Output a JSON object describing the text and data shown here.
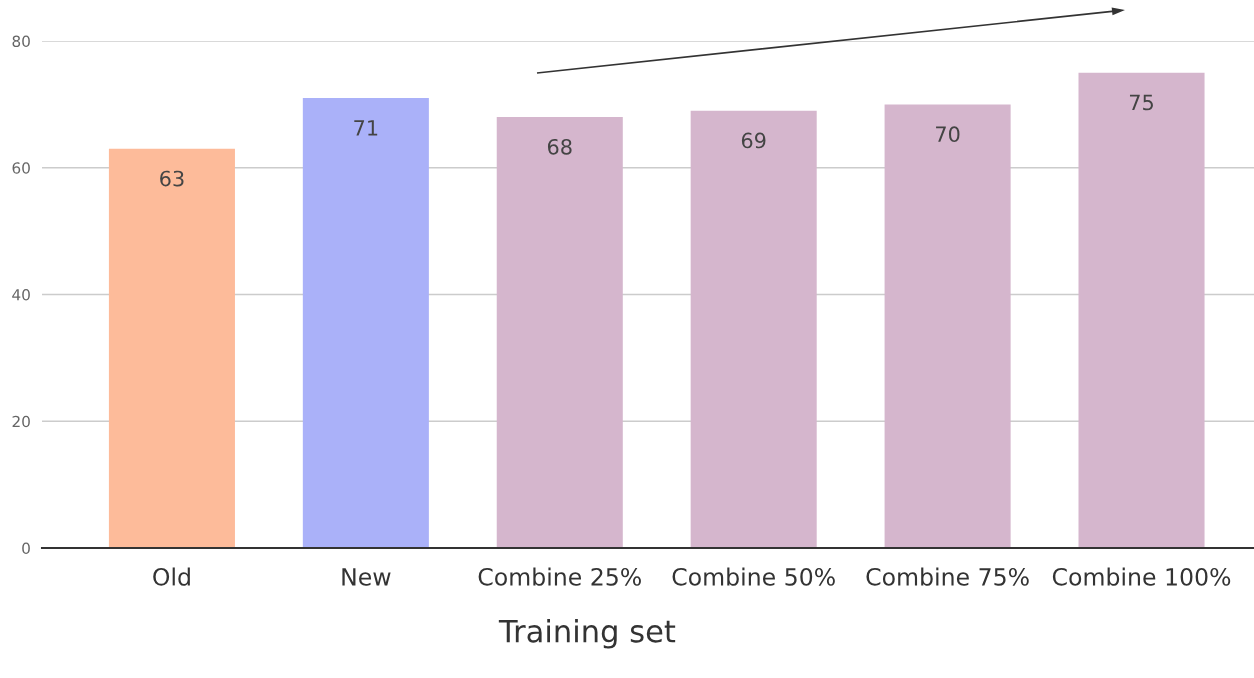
{
  "chart_data": {
    "type": "bar",
    "xlabel": "Training set",
    "categories": [
      "Old",
      "New",
      "Combine 25%",
      "Combine 50%",
      "Combine 75%",
      "Combine 100%"
    ],
    "values": [
      63,
      71,
      68,
      69,
      70,
      75
    ],
    "colors": [
      "#fdbb9a",
      "#aab1f9",
      "#d5b6cd",
      "#d5b6cd",
      "#d5b6cd",
      "#d5b6cd"
    ],
    "ylim": [
      0,
      80
    ],
    "yticks": [
      0,
      20,
      40,
      60,
      80
    ],
    "grid": "y",
    "data_labels": true
  }
}
